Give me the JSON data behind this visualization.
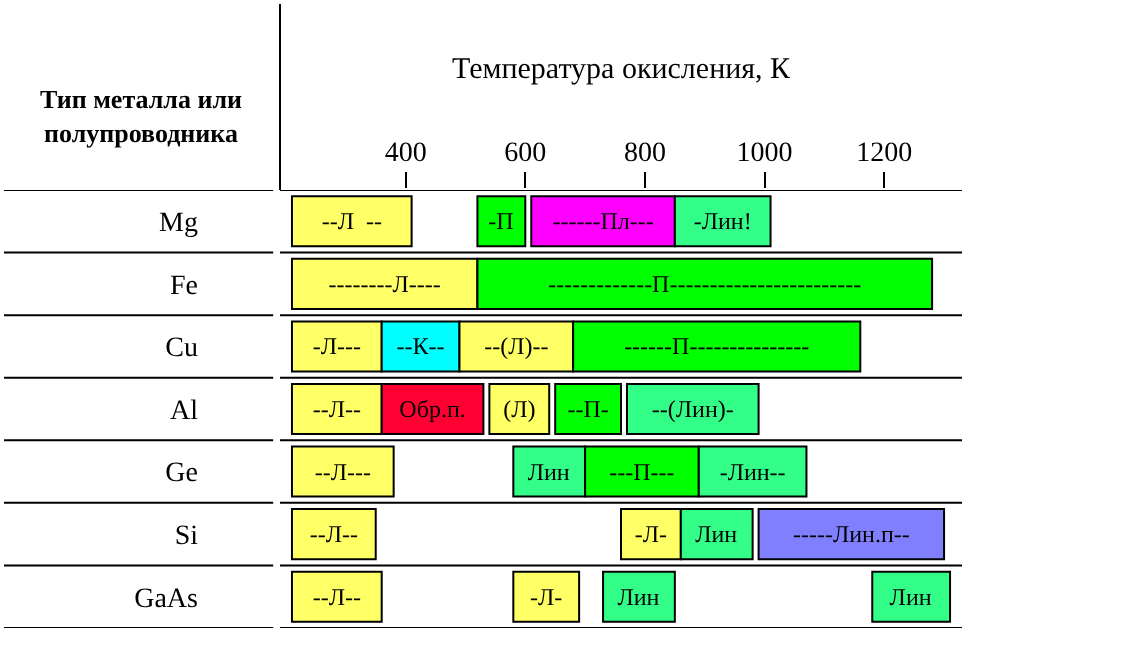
{
  "chart_data": {
    "type": "bar",
    "orientation": "horizontal",
    "xlabel": "Температура окисления, К",
    "ylabel": "Тип металла или полупроводника",
    "categories": [
      "Mg",
      "Fe",
      "Cu",
      "Al",
      "Ge",
      "Si",
      "GaAs"
    ],
    "xlim": [
      190,
      1330
    ],
    "xticks": [
      400,
      600,
      800,
      1000,
      1200
    ],
    "series": [
      {
        "base": [
          210,
          210,
          210,
          210,
          210,
          210,
          210
        ],
        "values": [
          200,
          310,
          150,
          150,
          170,
          140,
          150
        ],
        "colors": [
          "#ffff66",
          "#ffff66",
          "#ffff66",
          "#ffff66",
          "#ffff66",
          "#ffff66",
          "#ffff66"
        ],
        "value_labels": [
          "--Л  --",
          "--------Л----",
          "-Л---",
          "--Л--",
          "--Л---",
          "--Л--",
          "--Л--"
        ]
      },
      {
        "base": [
          520,
          520,
          360,
          360,
          580,
          760,
          580
        ],
        "values": [
          80,
          760,
          130,
          170,
          120,
          100,
          110
        ],
        "colors": [
          "#00ff00",
          "#00ff00",
          "#00ffff",
          "#ff0033",
          "#33ff88",
          "#ffff66",
          "#ffff66"
        ],
        "value_labels": [
          "-П",
          "-------------П------------------------",
          "--К--",
          "Обр.п.",
          "Лин",
          "-Л-",
          "-Л-"
        ]
      },
      {
        "base": [
          610,
          null,
          490,
          540,
          700,
          860,
          730
        ],
        "values": [
          240,
          null,
          190,
          100,
          190,
          120,
          120
        ],
        "colors": [
          "#ff00ff",
          null,
          "#ffff66",
          "#ffff66",
          "#00ff00",
          "#33ff88",
          "#33ff88"
        ],
        "value_labels": [
          "------Пл---",
          null,
          "--(Л)--",
          "(Л)",
          "---П---",
          "Лин",
          "Лин"
        ]
      },
      {
        "base": [
          850,
          null,
          680,
          650,
          890,
          990,
          1180
        ],
        "values": [
          160,
          null,
          480,
          110,
          180,
          310,
          130
        ],
        "colors": [
          "#33ff88",
          null,
          "#00ff00",
          "#00ff00",
          "#33ff88",
          "#8080ff",
          "#33ff88"
        ],
        "value_labels": [
          "-Лин!",
          null,
          "------П---------------",
          "--П-",
          "-Лин--",
          "-----Лин.п--",
          "Лин"
        ]
      },
      {
        "base": [
          null,
          null,
          null,
          770,
          null,
          null,
          null
        ],
        "values": [
          null,
          null,
          null,
          220,
          null,
          null,
          null
        ],
        "colors": [
          null,
          null,
          null,
          "#33ff88",
          null,
          null,
          null
        ],
        "value_labels": [
          null,
          null,
          null,
          "--(Лин)-",
          null,
          null,
          null
        ]
      }
    ]
  }
}
